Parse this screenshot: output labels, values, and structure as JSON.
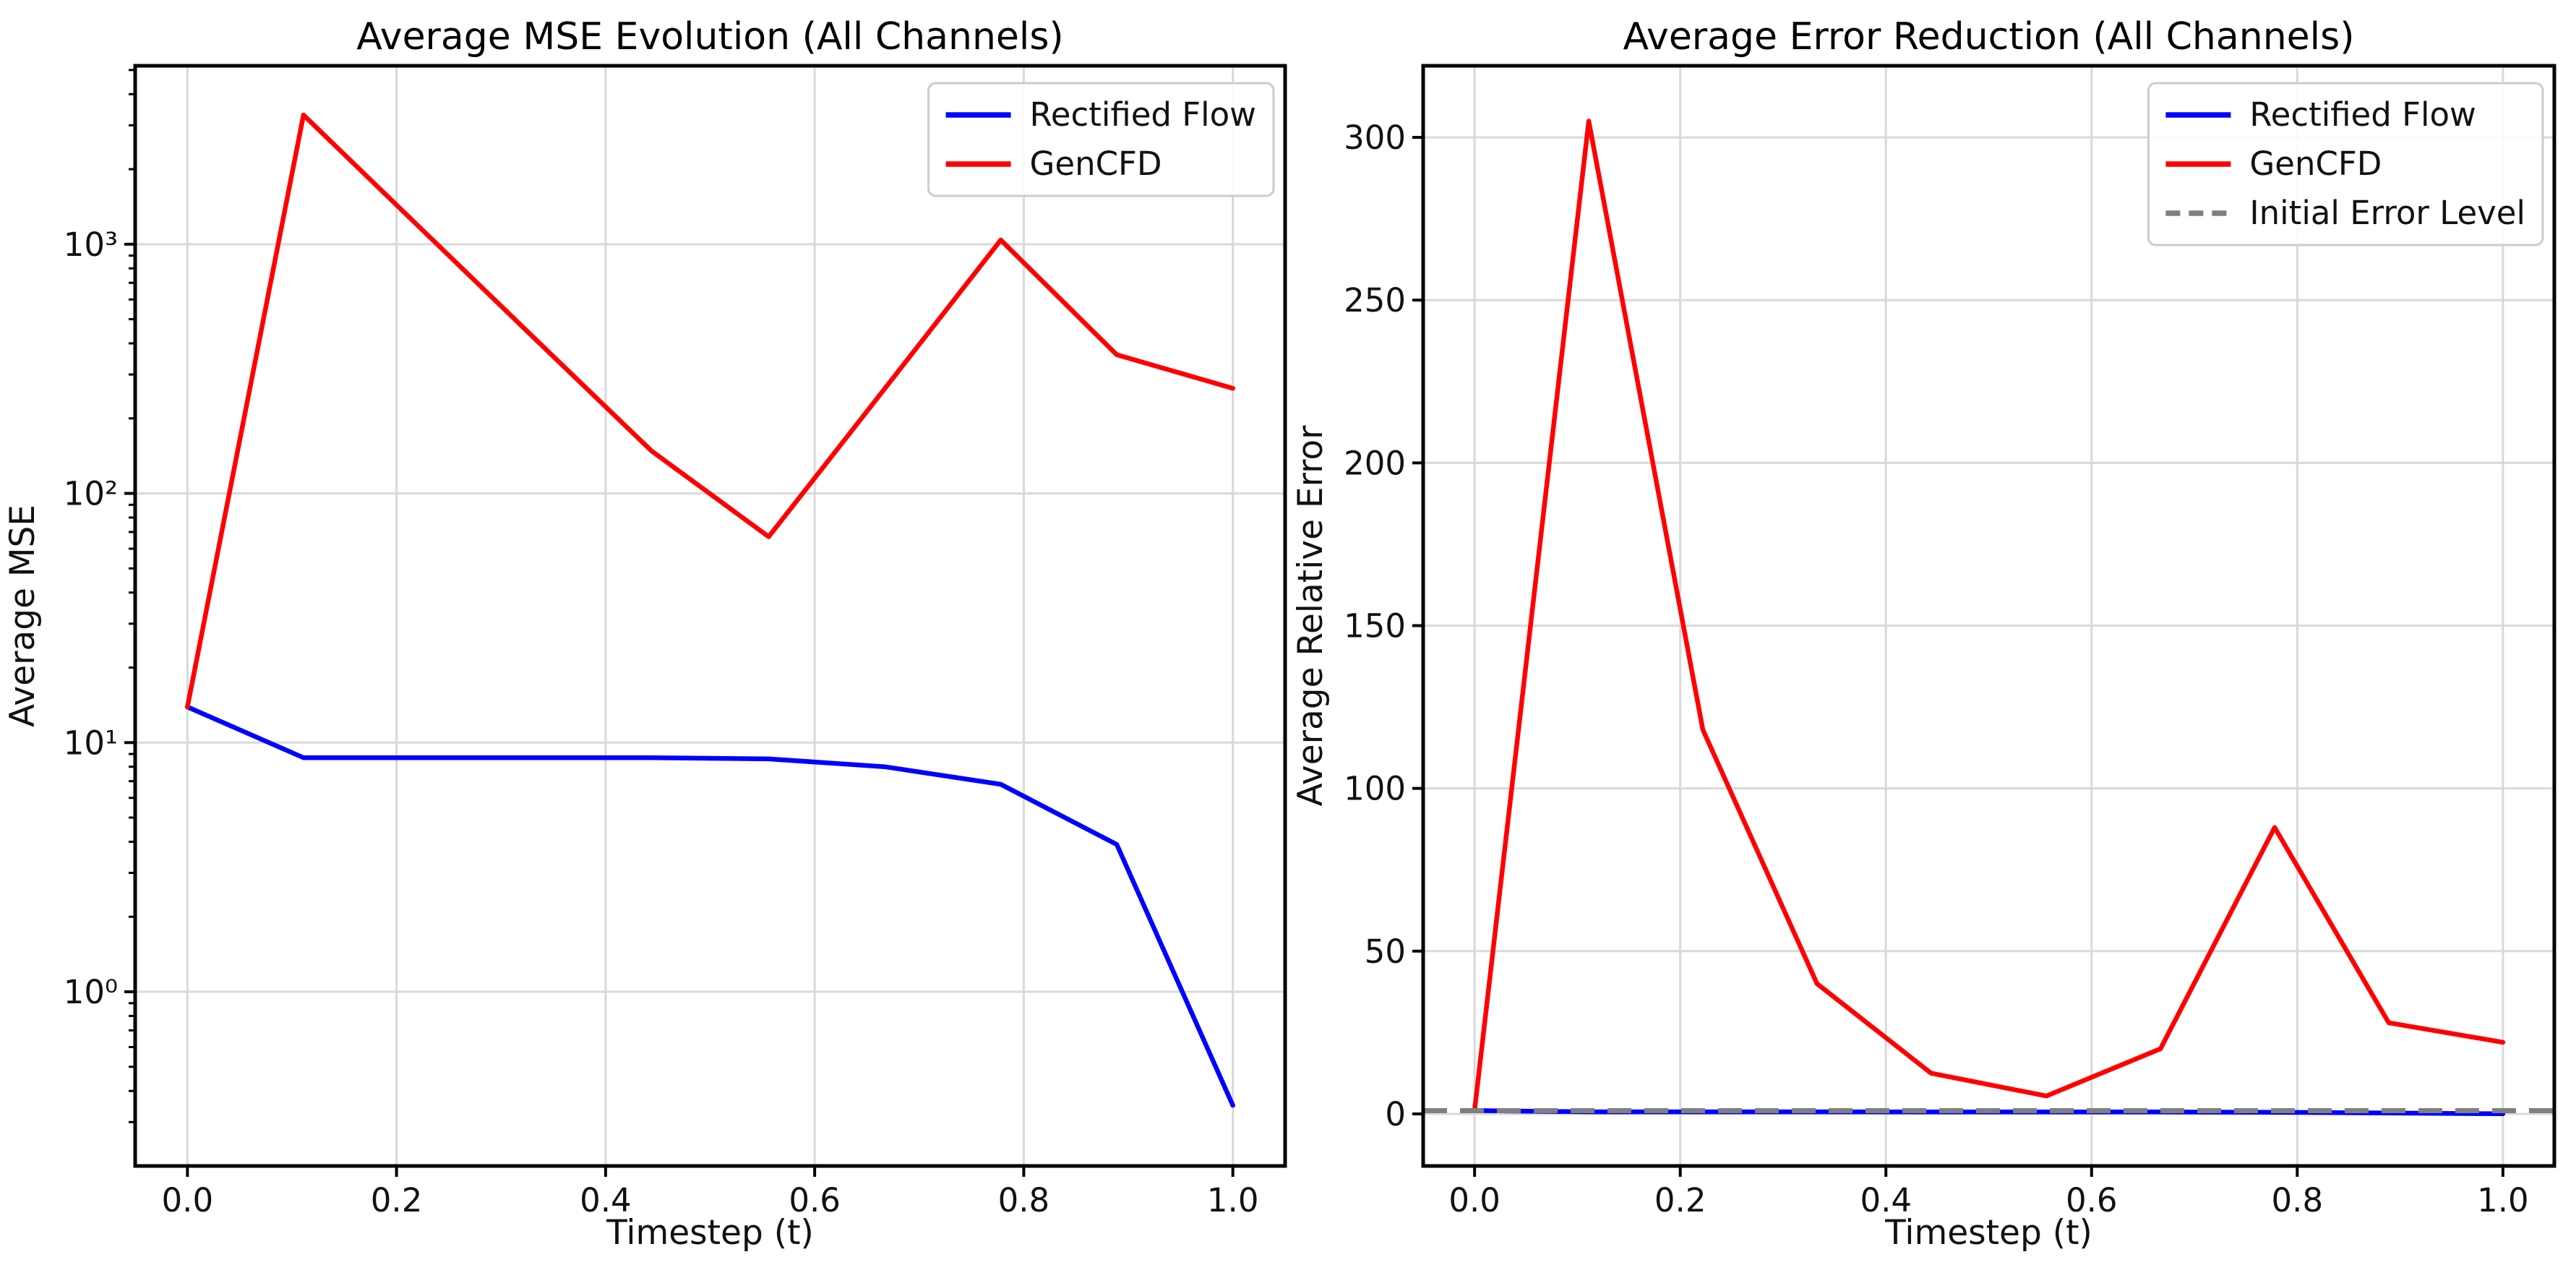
{
  "page": {
    "background": "#ffffff"
  },
  "colors": {
    "rectified_flow": "#0000ff",
    "gencfd": "#ff0000",
    "initial_error_level": "#7f7f7f",
    "grid": "#d9d9d9",
    "spine": "#000000",
    "text": "#111111"
  },
  "chart_data": [
    {
      "id": "mse-evolution",
      "type": "line",
      "title": "Average MSE Evolution (All Channels)",
      "xlabel": "Timestep (t)",
      "ylabel": "Average MSE",
      "yscale": "log",
      "grid": true,
      "legend_position": "upper right",
      "xlim": [
        -0.05,
        1.05
      ],
      "ylim": [
        0.2,
        5200
      ],
      "xticks": {
        "values": [
          0.0,
          0.2,
          0.4,
          0.6,
          0.8,
          1.0
        ],
        "labels": [
          "0.0",
          "0.2",
          "0.4",
          "0.6",
          "0.8",
          "1.0"
        ]
      },
      "yticks": {
        "values": [
          1,
          10,
          100,
          1000
        ],
        "labels": [
          "10⁰",
          "10¹",
          "10²",
          "10³"
        ]
      },
      "x": [
        0.0,
        0.111,
        0.222,
        0.333,
        0.444,
        0.556,
        0.667,
        0.778,
        0.889,
        1.0
      ],
      "series": [
        {
          "name": "Rectified Flow",
          "color": "#0000ff",
          "dash": false,
          "values": [
            13.9,
            8.7,
            8.7,
            8.7,
            8.7,
            8.6,
            8.0,
            6.8,
            3.9,
            0.35
          ]
        },
        {
          "name": "GenCFD",
          "color": "#ff0000",
          "dash": false,
          "values": [
            13.9,
            3300,
            1170,
            415,
            148,
            67,
            263,
            1040,
            360,
            264
          ]
        }
      ],
      "hlines": [],
      "legend": [
        {
          "label": "Rectified Flow",
          "color": "#0000ff",
          "dash": false
        },
        {
          "label": "GenCFD",
          "color": "#ff0000",
          "dash": false
        }
      ]
    },
    {
      "id": "error-reduction",
      "type": "line",
      "title": "Average Error Reduction (All Channels)",
      "xlabel": "Timestep (t)",
      "ylabel": "Average Relative Error",
      "yscale": "linear",
      "grid": true,
      "legend_position": "upper right",
      "xlim": [
        -0.05,
        1.05
      ],
      "ylim": [
        -16,
        322
      ],
      "xticks": {
        "values": [
          0.0,
          0.2,
          0.4,
          0.6,
          0.8,
          1.0
        ],
        "labels": [
          "0.0",
          "0.2",
          "0.4",
          "0.6",
          "0.8",
          "1.0"
        ]
      },
      "yticks": {
        "values": [
          0,
          50,
          100,
          150,
          200,
          250,
          300
        ],
        "labels": [
          "0",
          "50",
          "100",
          "150",
          "200",
          "250",
          "300"
        ]
      },
      "x": [
        0.0,
        0.111,
        0.222,
        0.333,
        0.444,
        0.556,
        0.667,
        0.778,
        0.889,
        1.0
      ],
      "series": [
        {
          "name": "Rectified Flow",
          "color": "#0000ff",
          "dash": false,
          "values": [
            1.0,
            0.63,
            0.63,
            0.63,
            0.62,
            0.62,
            0.58,
            0.49,
            0.28,
            0.03
          ]
        },
        {
          "name": "GenCFD",
          "color": "#ff0000",
          "dash": false,
          "values": [
            1.0,
            305,
            118,
            40,
            12.5,
            5.5,
            20,
            88,
            28,
            22
          ]
        }
      ],
      "hlines": [
        {
          "label": "Initial Error Level",
          "y": 1.0,
          "color": "#7f7f7f",
          "dash": true
        }
      ],
      "legend": [
        {
          "label": "Rectified Flow",
          "color": "#0000ff",
          "dash": false
        },
        {
          "label": "GenCFD",
          "color": "#ff0000",
          "dash": false
        },
        {
          "label": "Initial Error Level",
          "color": "#7f7f7f",
          "dash": true
        }
      ]
    }
  ]
}
